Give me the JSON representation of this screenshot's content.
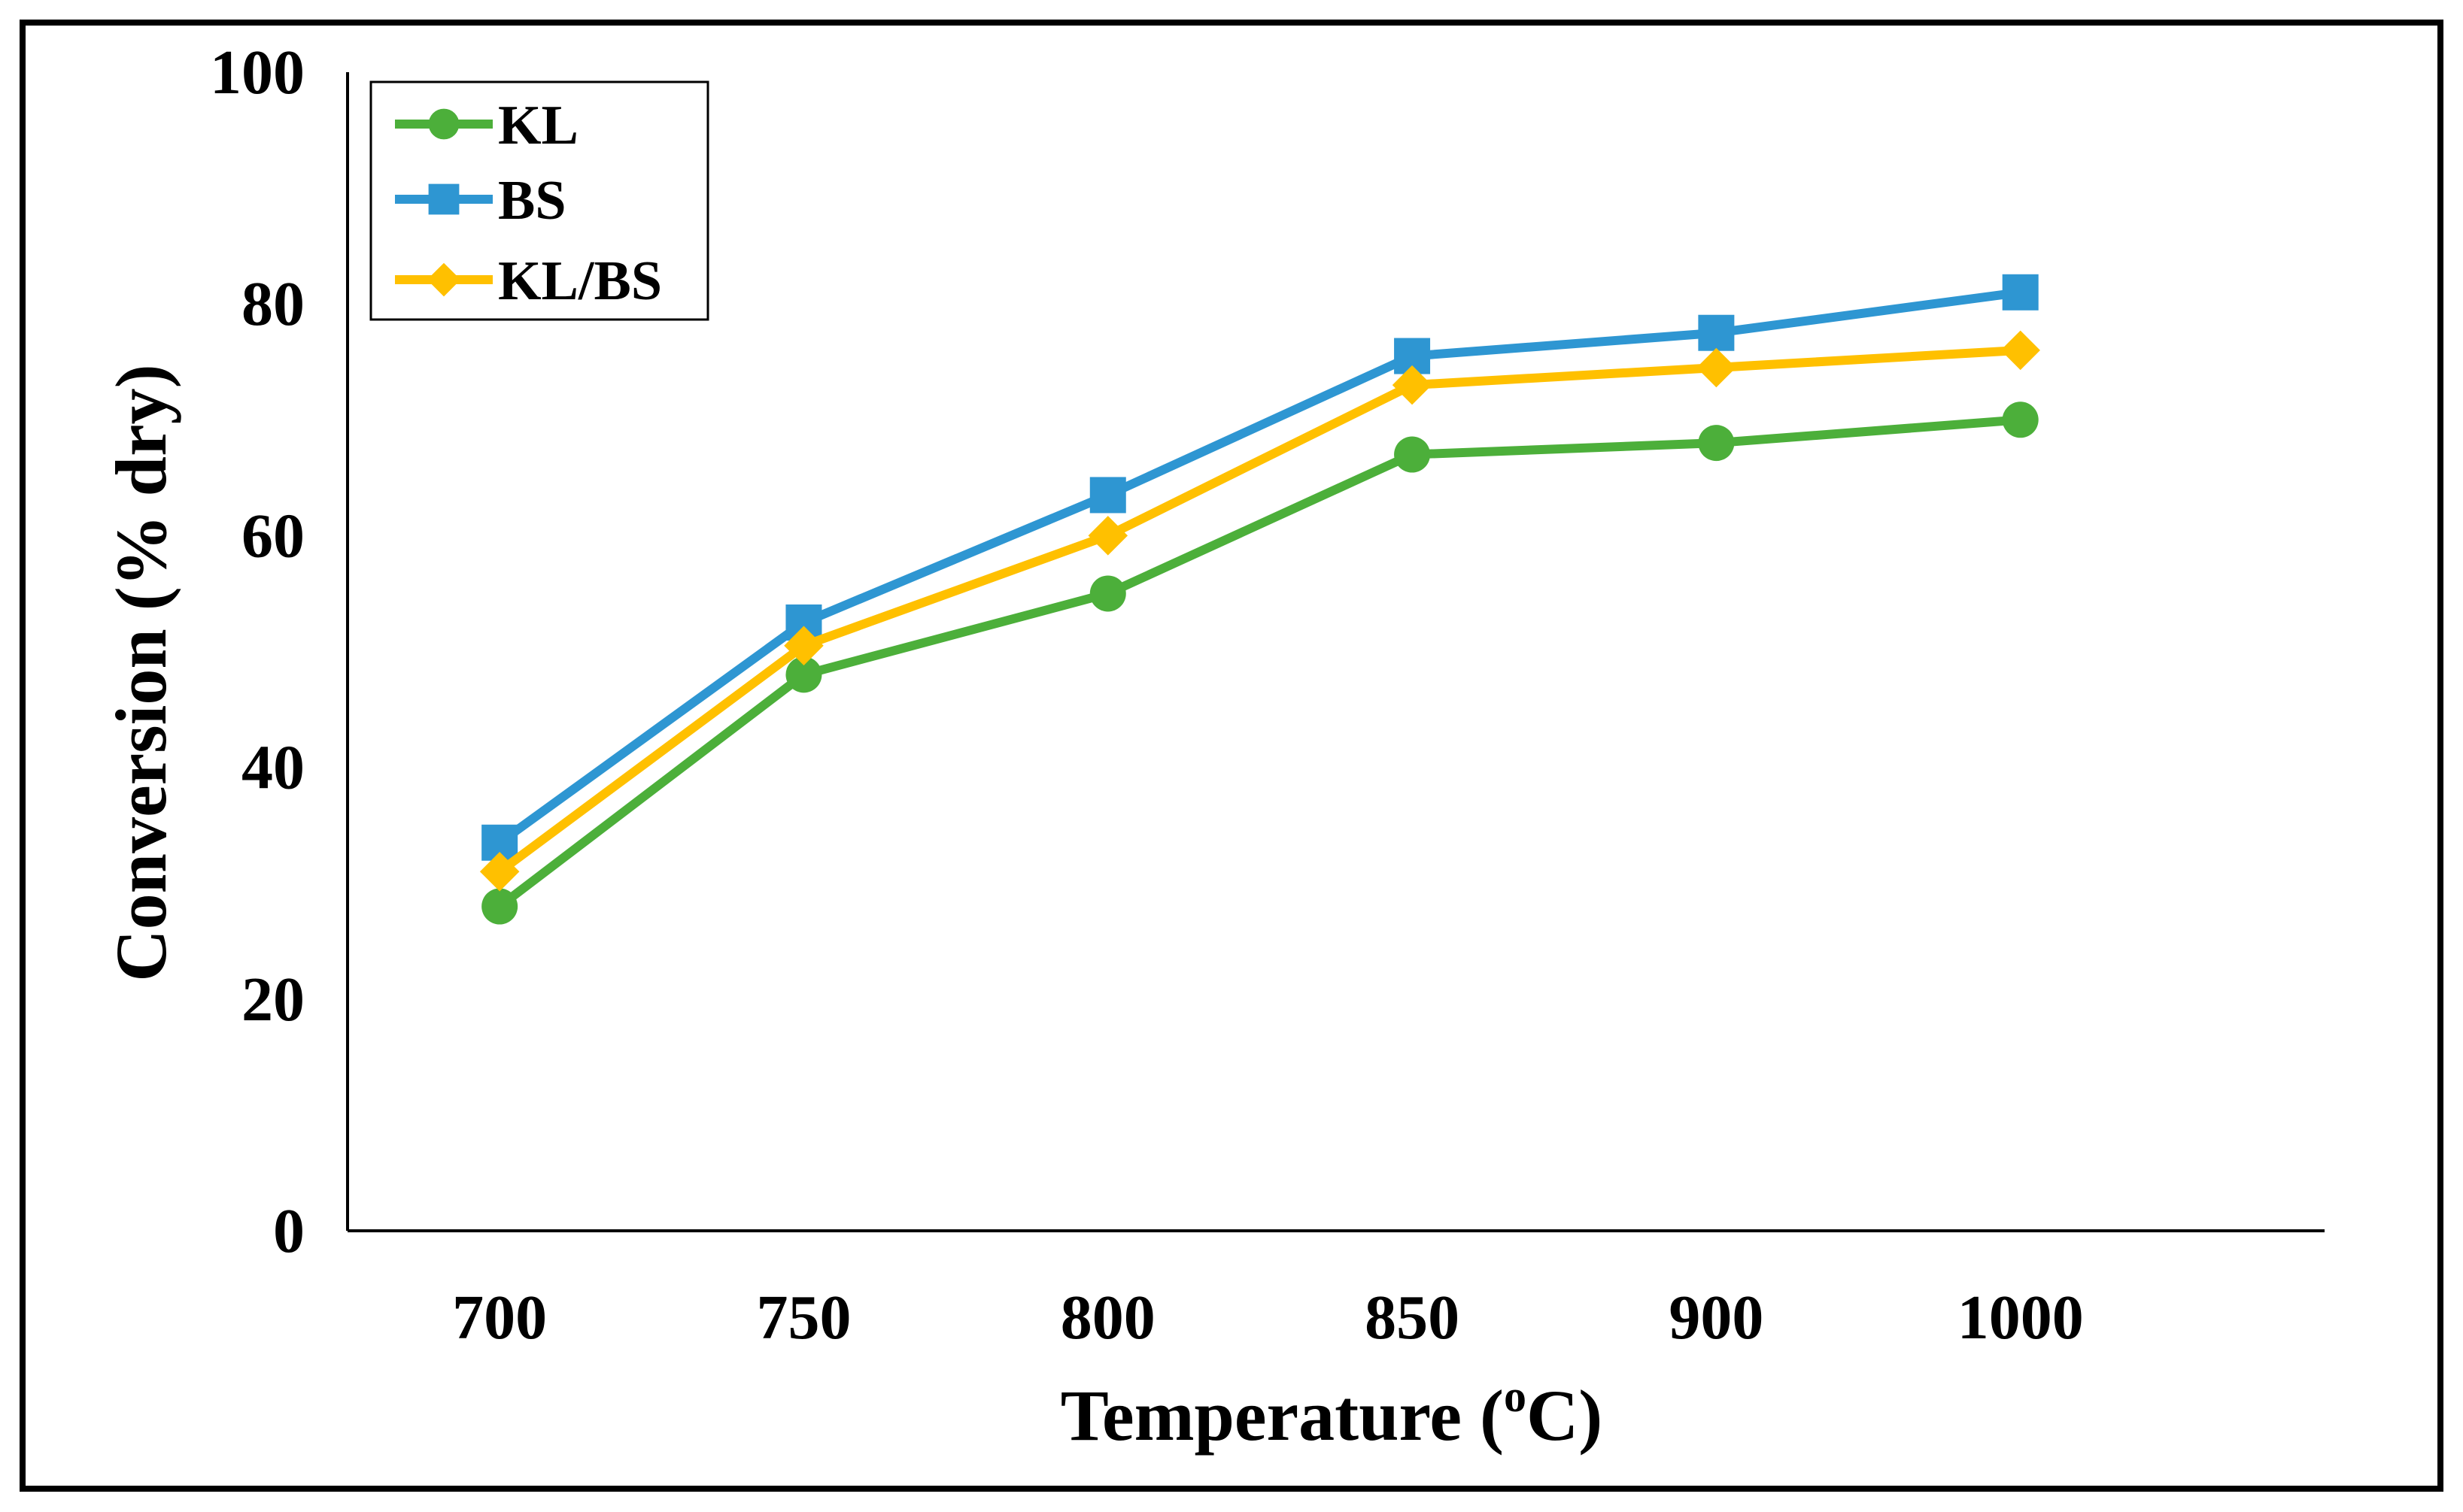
{
  "chart_data": {
    "type": "line",
    "title": "",
    "xlabel": "Temperature (",
    "xlabel_sup": "o",
    "xlabel_suffix": "C)",
    "ylabel": "Conversion (% dry)",
    "categories": [
      "700",
      "750",
      "800",
      "850",
      "900",
      "1000"
    ],
    "ylim": [
      0,
      100
    ],
    "yticks": [
      "0",
      "20",
      "40",
      "60",
      "80",
      "100"
    ],
    "grid": false,
    "legend_position": "top-left",
    "series": [
      {
        "name": "KL",
        "marker": "circle",
        "color": "#4caf3a",
        "values": [
          28,
          48,
          55,
          67,
          68,
          70
        ]
      },
      {
        "name": "BS",
        "marker": "square",
        "color": "#2e96d2",
        "values": [
          33.5,
          52.5,
          63.5,
          75.5,
          77.5,
          81
        ]
      },
      {
        "name": "KL/BS",
        "marker": "diamond",
        "color": "#ffc000",
        "values": [
          31,
          50.5,
          60,
          73,
          74.5,
          76
        ]
      }
    ]
  }
}
